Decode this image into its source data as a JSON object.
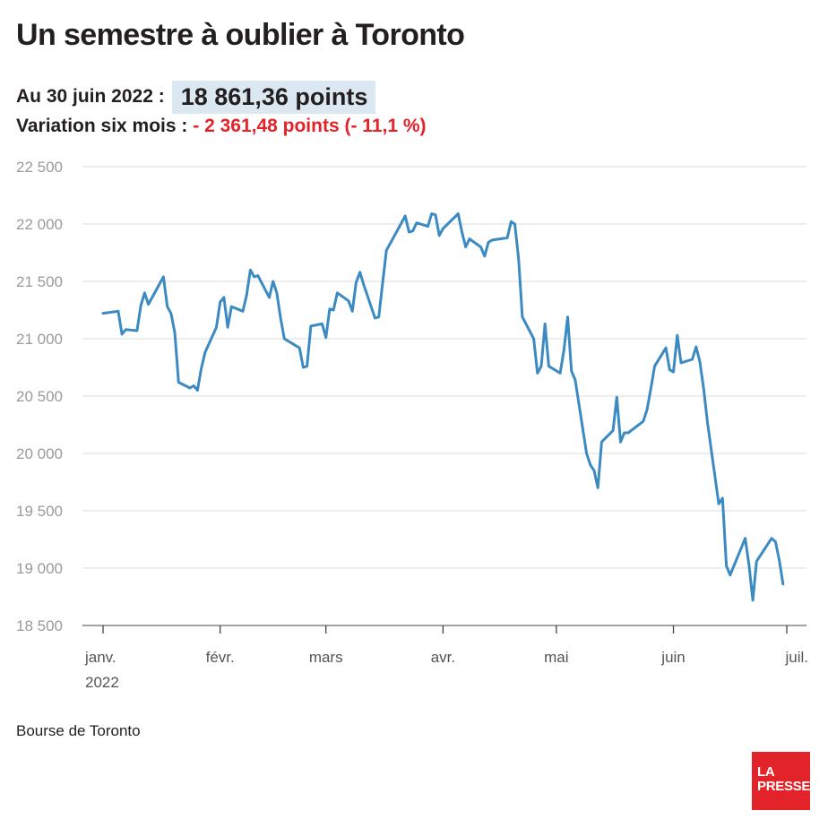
{
  "header": {
    "title": "Un semestre à oublier à Toronto",
    "date_label": "Au 30 juin 2022 :",
    "value": "18 861,36 points",
    "variation_label": "Variation six mois :",
    "variation_value": "- 2 361,48 points (- 11,1 %)"
  },
  "source": "Bourse de Toronto",
  "logo": {
    "line1": "LA",
    "line2": "PRESSE"
  },
  "colors": {
    "line": "#3b8bc2",
    "accent": "#e3232a",
    "highlight": "#dbe8f1",
    "grid": "#dcdcdc",
    "axis_text": "#9a9a9a"
  },
  "chart_data": {
    "type": "line",
    "title": "Un semestre à oublier à Toronto",
    "xlabel": "",
    "ylabel": "",
    "ylim": [
      18500,
      22500
    ],
    "yticks": [
      22500,
      22000,
      21500,
      21000,
      20500,
      20000,
      19500,
      19000,
      18500
    ],
    "ytick_labels": [
      "22 500",
      "22 000",
      "21 500",
      "21 000",
      "20 500",
      "20 000",
      "19 500",
      "19 000",
      "18 500"
    ],
    "xlim": [
      "2022-01-01",
      "2022-07-01"
    ],
    "xticks": [
      "2022-01-01",
      "2022-02-01",
      "2022-03-01",
      "2022-04-01",
      "2022-05-01",
      "2022-06-01",
      "2022-07-01"
    ],
    "xtick_labels": [
      "janv.",
      "févr.",
      "mars",
      "avr.",
      "mai",
      "juin",
      "juil."
    ],
    "xtick_sublabel": "2022",
    "grid": true,
    "series": [
      {
        "name": "",
        "points": [
          [
            "2022-01-01",
            21222
          ],
          [
            "2022-01-05",
            21240
          ],
          [
            "2022-01-06",
            21040
          ],
          [
            "2022-01-07",
            21080
          ],
          [
            "2022-01-10",
            21070
          ],
          [
            "2022-01-11",
            21290
          ],
          [
            "2022-01-12",
            21400
          ],
          [
            "2022-01-13",
            21300
          ],
          [
            "2022-01-17",
            21540
          ],
          [
            "2022-01-18",
            21280
          ],
          [
            "2022-01-19",
            21220
          ],
          [
            "2022-01-20",
            21050
          ],
          [
            "2022-01-21",
            20620
          ],
          [
            "2022-01-24",
            20570
          ],
          [
            "2022-01-25",
            20590
          ],
          [
            "2022-01-26",
            20550
          ],
          [
            "2022-01-27",
            20740
          ],
          [
            "2022-01-28",
            20880
          ],
          [
            "2022-01-31",
            21100
          ],
          [
            "2022-02-01",
            21320
          ],
          [
            "2022-02-02",
            21360
          ],
          [
            "2022-02-03",
            21100
          ],
          [
            "2022-02-04",
            21280
          ],
          [
            "2022-02-07",
            21240
          ],
          [
            "2022-02-08",
            21380
          ],
          [
            "2022-02-09",
            21600
          ],
          [
            "2022-02-10",
            21540
          ],
          [
            "2022-02-11",
            21550
          ],
          [
            "2022-02-14",
            21360
          ],
          [
            "2022-02-15",
            21500
          ],
          [
            "2022-02-16",
            21400
          ],
          [
            "2022-02-17",
            21180
          ],
          [
            "2022-02-18",
            21000
          ],
          [
            "2022-02-22",
            20920
          ],
          [
            "2022-02-23",
            20750
          ],
          [
            "2022-02-24",
            20760
          ],
          [
            "2022-02-25",
            21110
          ],
          [
            "2022-02-28",
            21130
          ],
          [
            "2022-03-01",
            21010
          ],
          [
            "2022-03-02",
            21260
          ],
          [
            "2022-03-03",
            21250
          ],
          [
            "2022-03-04",
            21400
          ],
          [
            "2022-03-07",
            21330
          ],
          [
            "2022-03-08",
            21240
          ],
          [
            "2022-03-09",
            21490
          ],
          [
            "2022-03-10",
            21580
          ],
          [
            "2022-03-11",
            21470
          ],
          [
            "2022-03-14",
            21180
          ],
          [
            "2022-03-15",
            21190
          ],
          [
            "2022-03-16",
            21480
          ],
          [
            "2022-03-17",
            21770
          ],
          [
            "2022-03-18",
            21830
          ],
          [
            "2022-03-22",
            22070
          ],
          [
            "2022-03-23",
            21930
          ],
          [
            "2022-03-24",
            21940
          ],
          [
            "2022-03-25",
            22010
          ],
          [
            "2022-03-28",
            21980
          ],
          [
            "2022-03-29",
            22090
          ],
          [
            "2022-03-30",
            22080
          ],
          [
            "2022-03-31",
            21900
          ],
          [
            "2022-04-01",
            21960
          ],
          [
            "2022-04-05",
            22090
          ],
          [
            "2022-04-06",
            21930
          ],
          [
            "2022-04-07",
            21800
          ],
          [
            "2022-04-08",
            21870
          ],
          [
            "2022-04-11",
            21800
          ],
          [
            "2022-04-12",
            21720
          ],
          [
            "2022-04-13",
            21840
          ],
          [
            "2022-04-14",
            21860
          ],
          [
            "2022-04-18",
            21880
          ],
          [
            "2022-04-19",
            22020
          ],
          [
            "2022-04-20",
            22000
          ],
          [
            "2022-04-21",
            21700
          ],
          [
            "2022-04-22",
            21190
          ],
          [
            "2022-04-25",
            21000
          ],
          [
            "2022-04-26",
            20700
          ],
          [
            "2022-04-27",
            20760
          ],
          [
            "2022-04-28",
            21130
          ],
          [
            "2022-04-29",
            20760
          ],
          [
            "2022-05-02",
            20700
          ],
          [
            "2022-05-03",
            20900
          ],
          [
            "2022-05-04",
            21190
          ],
          [
            "2022-05-05",
            20720
          ],
          [
            "2022-05-06",
            20640
          ],
          [
            "2022-05-09",
            20000
          ],
          [
            "2022-05-10",
            19900
          ],
          [
            "2022-05-11",
            19850
          ],
          [
            "2022-05-12",
            19700
          ],
          [
            "2022-05-13",
            20100
          ],
          [
            "2022-05-16",
            20200
          ],
          [
            "2022-05-17",
            20490
          ],
          [
            "2022-05-18",
            20100
          ],
          [
            "2022-05-19",
            20180
          ],
          [
            "2022-05-20",
            20180
          ],
          [
            "2022-05-24",
            20280
          ],
          [
            "2022-05-25",
            20380
          ],
          [
            "2022-05-26",
            20560
          ],
          [
            "2022-05-27",
            20760
          ],
          [
            "2022-05-30",
            20920
          ],
          [
            "2022-05-31",
            20730
          ],
          [
            "2022-06-01",
            20710
          ],
          [
            "2022-06-02",
            21030
          ],
          [
            "2022-06-03",
            20790
          ],
          [
            "2022-06-06",
            20820
          ],
          [
            "2022-06-07",
            20930
          ],
          [
            "2022-06-08",
            20800
          ],
          [
            "2022-06-09",
            20560
          ],
          [
            "2022-06-10",
            20270
          ],
          [
            "2022-06-13",
            19560
          ],
          [
            "2022-06-14",
            19610
          ],
          [
            "2022-06-15",
            19020
          ],
          [
            "2022-06-16",
            18940
          ],
          [
            "2022-06-20",
            19260
          ],
          [
            "2022-06-21",
            19030
          ],
          [
            "2022-06-22",
            18720
          ],
          [
            "2022-06-23",
            19060
          ],
          [
            "2022-06-27",
            19260
          ],
          [
            "2022-06-28",
            19230
          ],
          [
            "2022-06-29",
            19070
          ],
          [
            "2022-06-30",
            18861
          ]
        ]
      }
    ]
  }
}
